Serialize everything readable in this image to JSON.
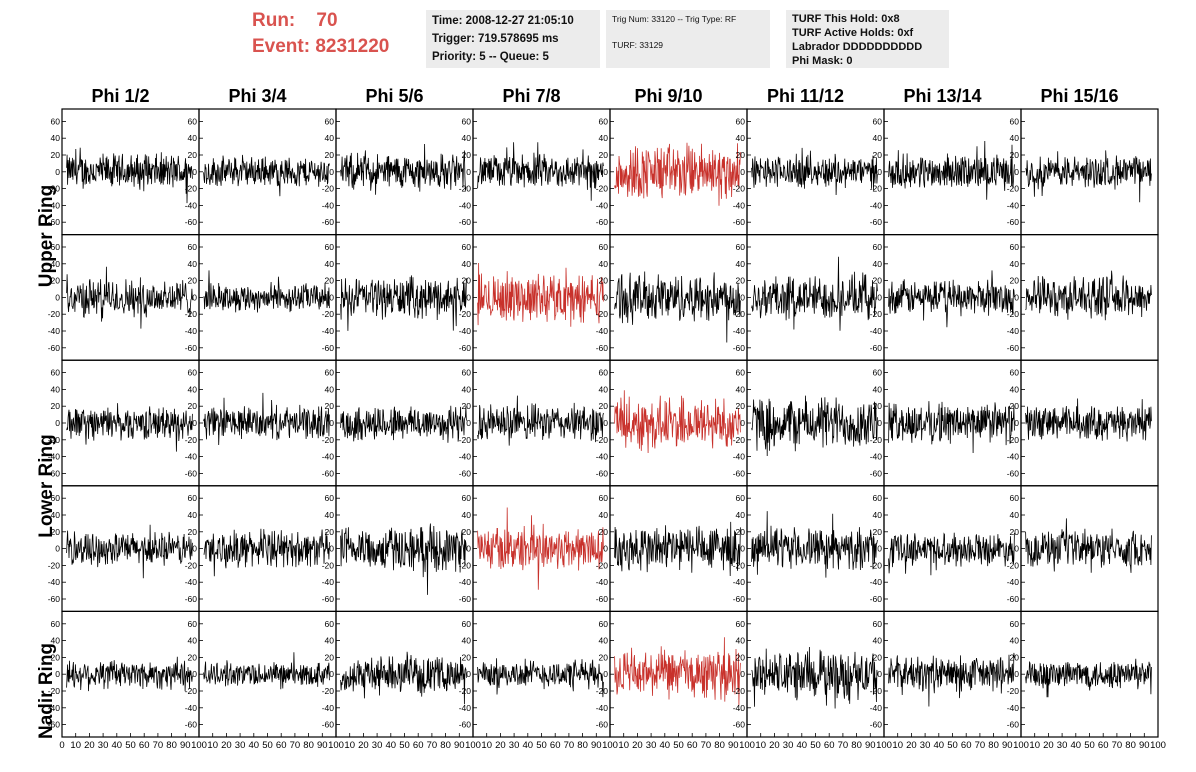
{
  "header": {
    "run_label": "Run:",
    "run_value": "70",
    "event_label": "Event:",
    "event_value": "8231220",
    "title_color": "#d9534f",
    "box1": {
      "time": "Time: 2008-12-27 21:05:10",
      "trigger": "Trigger: 719.578695 ms",
      "priority": "Priority: 5 -- Queue: 5"
    },
    "box2": {
      "trig": "Trig Num: 33120 -- Trig Type: RF",
      "turf": "TURF: 33129"
    },
    "box3": {
      "hold": "TURF This Hold: 0x8",
      "active": "TURF Active Holds: 0xf",
      "labrador": "Labrador DDDDDDDDDD",
      "mask": "Phi Mask: 0"
    }
  },
  "columns": [
    "Phi 1/2",
    "Phi 3/4",
    "Phi 5/6",
    "Phi 7/8",
    "Phi 9/10",
    "Phi 11/12",
    "Phi 13/14",
    "Phi 15/16"
  ],
  "ring_labels": {
    "upper": "Upper Ring",
    "lower": "Lower Ring",
    "nadir": "Nadir Ring"
  },
  "chart_data": {
    "type": "line",
    "xlim": [
      0,
      100
    ],
    "ylim": [
      -70,
      70
    ],
    "x_ticks": [
      "0",
      "10",
      "20",
      "30",
      "40",
      "50",
      "60",
      "70",
      "80",
      "90",
      "100"
    ],
    "y_ticks": [
      "60",
      "40",
      "20",
      "0",
      "-20",
      "-40",
      "-60"
    ],
    "n_samples": 260,
    "trace_color": "#000000",
    "highlight_color": "#c8312b",
    "highlighted_panels": [
      [
        0,
        4
      ],
      [
        1,
        3
      ],
      [
        2,
        4
      ],
      [
        3,
        3
      ],
      [
        4,
        4
      ]
    ],
    "amplitudes": [
      [
        18,
        15,
        18,
        17,
        28,
        16,
        17,
        16
      ],
      [
        19,
        14,
        20,
        24,
        24,
        22,
        17,
        20
      ],
      [
        16,
        16,
        18,
        18,
        26,
        26,
        20,
        17
      ],
      [
        16,
        18,
        22,
        22,
        24,
        20,
        16,
        18
      ],
      [
        15,
        12,
        17,
        14,
        24,
        24,
        18,
        15
      ]
    ]
  }
}
